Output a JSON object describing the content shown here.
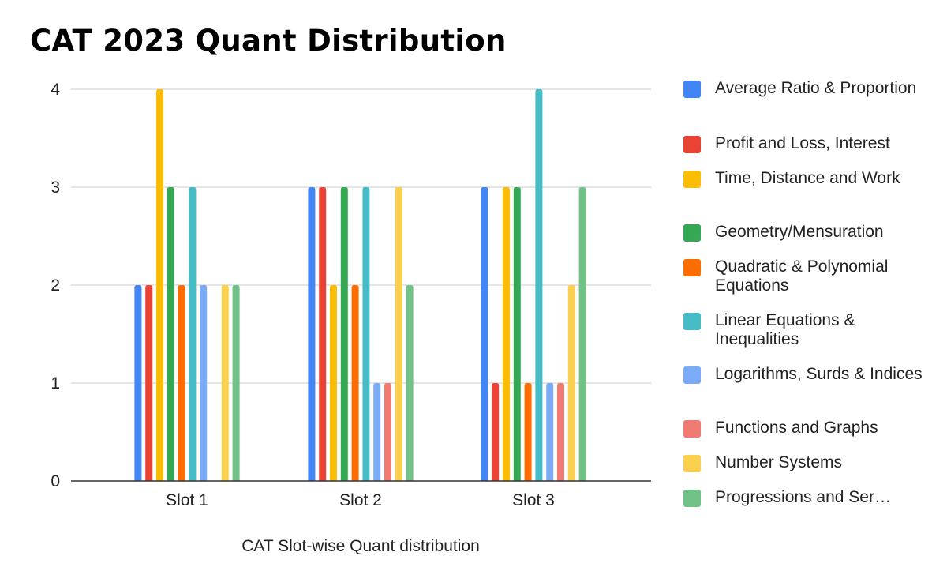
{
  "title": "CAT 2023 Quant Distribution",
  "chart_data": {
    "type": "bar",
    "title": "CAT 2023 Quant Distribution",
    "xlabel": "CAT Slot-wise Quant distribution",
    "ylabel": "",
    "ylim": [
      0,
      4
    ],
    "yticks": [
      "0",
      "1",
      "2",
      "3",
      "4"
    ],
    "grid": true,
    "legend_position": "right",
    "categories": [
      "Slot 1",
      "Slot 2",
      "Slot 3"
    ],
    "series": [
      {
        "name": "Average Ratio & Proportion",
        "color": "#4285f4",
        "values": [
          2,
          3,
          3
        ]
      },
      {
        "name": "Profit and Loss, Interest",
        "color": "#ea4335",
        "values": [
          2,
          3,
          1
        ]
      },
      {
        "name": "Time, Distance and Work",
        "color": "#fbbc04",
        "values": [
          4,
          2,
          3
        ]
      },
      {
        "name": "Geometry/Mensuration",
        "color": "#34a853",
        "values": [
          3,
          3,
          3
        ]
      },
      {
        "name": "Quadratic & Polynomial Equations",
        "color": "#ff6d01",
        "values": [
          2,
          2,
          1
        ]
      },
      {
        "name": "Linear Equations & Inequalities",
        "color": "#46bdc6",
        "values": [
          3,
          3,
          4
        ]
      },
      {
        "name": "Logarithms, Surds & Indices",
        "color": "#7baaf7",
        "values": [
          2,
          1,
          1
        ]
      },
      {
        "name": "Functions and Graphs",
        "color": "#f07b72",
        "values": [
          0,
          1,
          1
        ]
      },
      {
        "name": "Number Systems",
        "color": "#fcd04f",
        "values": [
          2,
          3,
          2
        ]
      },
      {
        "name": "Progressions and Ser…",
        "color": "#71c287",
        "values": [
          2,
          2,
          3
        ]
      }
    ]
  }
}
